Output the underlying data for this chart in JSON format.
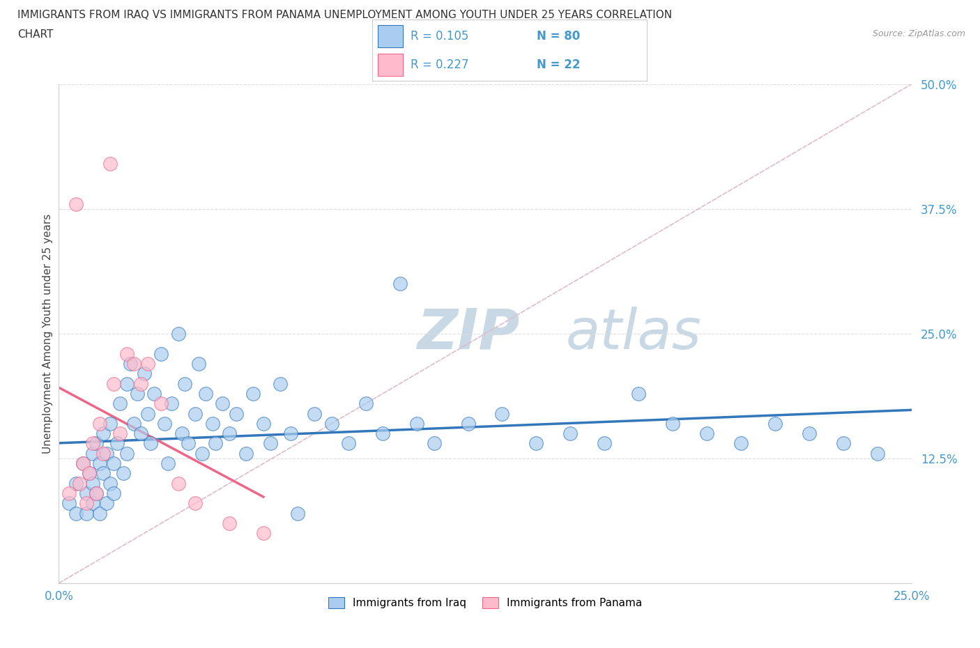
{
  "title_line1": "IMMIGRANTS FROM IRAQ VS IMMIGRANTS FROM PANAMA UNEMPLOYMENT AMONG YOUTH UNDER 25 YEARS CORRELATION",
  "title_line2": "CHART",
  "source_text": "Source: ZipAtlas.com",
  "ylabel": "Unemployment Among Youth under 25 years",
  "xlim": [
    0.0,
    0.25
  ],
  "ylim": [
    0.0,
    0.5
  ],
  "color_iraq": "#AACCEE",
  "color_panama": "#FFBBCC",
  "trendline_color_iraq": "#3377BB",
  "trendline_color_panama": "#EE6688",
  "diagonal_color": "#DDBBCC",
  "text_color_blue": "#4499CC",
  "watermark_zip": "ZIP",
  "watermark_atlas": "atlas",
  "watermark_color": "#CCDDE8",
  "grid_color": "#DDDDDD",
  "axis_color": "#CCCCCC",
  "iraq_x": [
    0.003,
    0.005,
    0.005,
    0.007,
    0.008,
    0.008,
    0.009,
    0.01,
    0.01,
    0.01,
    0.011,
    0.011,
    0.012,
    0.012,
    0.013,
    0.013,
    0.014,
    0.014,
    0.015,
    0.015,
    0.016,
    0.016,
    0.017,
    0.018,
    0.019,
    0.02,
    0.02,
    0.021,
    0.022,
    0.023,
    0.024,
    0.025,
    0.026,
    0.027,
    0.028,
    0.03,
    0.031,
    0.032,
    0.033,
    0.035,
    0.036,
    0.037,
    0.038,
    0.04,
    0.041,
    0.042,
    0.043,
    0.045,
    0.046,
    0.048,
    0.05,
    0.052,
    0.055,
    0.057,
    0.06,
    0.062,
    0.065,
    0.068,
    0.07,
    0.075,
    0.08,
    0.085,
    0.09,
    0.095,
    0.1,
    0.105,
    0.11,
    0.12,
    0.13,
    0.14,
    0.15,
    0.16,
    0.17,
    0.18,
    0.19,
    0.2,
    0.21,
    0.22,
    0.23,
    0.24
  ],
  "iraq_y": [
    0.08,
    0.1,
    0.07,
    0.12,
    0.09,
    0.07,
    0.11,
    0.13,
    0.08,
    0.1,
    0.14,
    0.09,
    0.12,
    0.07,
    0.11,
    0.15,
    0.08,
    0.13,
    0.1,
    0.16,
    0.12,
    0.09,
    0.14,
    0.18,
    0.11,
    0.2,
    0.13,
    0.22,
    0.16,
    0.19,
    0.15,
    0.21,
    0.17,
    0.14,
    0.19,
    0.23,
    0.16,
    0.12,
    0.18,
    0.25,
    0.15,
    0.2,
    0.14,
    0.17,
    0.22,
    0.13,
    0.19,
    0.16,
    0.14,
    0.18,
    0.15,
    0.17,
    0.13,
    0.19,
    0.16,
    0.14,
    0.2,
    0.15,
    0.07,
    0.17,
    0.16,
    0.14,
    0.18,
    0.15,
    0.3,
    0.16,
    0.14,
    0.16,
    0.17,
    0.14,
    0.15,
    0.14,
    0.19,
    0.16,
    0.15,
    0.14,
    0.16,
    0.15,
    0.14,
    0.13
  ],
  "panama_x": [
    0.003,
    0.005,
    0.006,
    0.007,
    0.008,
    0.009,
    0.01,
    0.011,
    0.012,
    0.013,
    0.015,
    0.016,
    0.018,
    0.02,
    0.022,
    0.024,
    0.026,
    0.03,
    0.035,
    0.04,
    0.05,
    0.06
  ],
  "panama_y": [
    0.09,
    0.38,
    0.1,
    0.12,
    0.08,
    0.11,
    0.14,
    0.09,
    0.16,
    0.13,
    0.42,
    0.2,
    0.15,
    0.23,
    0.22,
    0.2,
    0.22,
    0.18,
    0.1,
    0.08,
    0.06,
    0.05
  ]
}
